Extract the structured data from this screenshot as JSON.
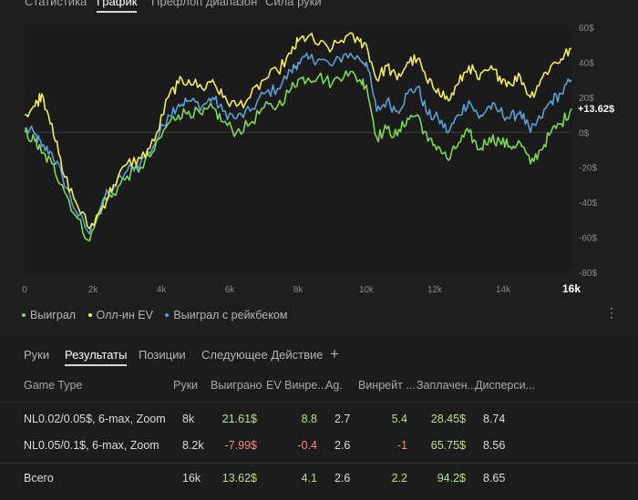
{
  "top_tabs": [
    "Статистика",
    "График",
    "Префлоп диапазон",
    "Сила руки"
  ],
  "active_top_tab": 1,
  "chart_data": {
    "type": "line",
    "x_axis": {
      "ticks": [
        "0",
        "2k",
        "4k",
        "6k",
        "8k",
        "10k",
        "12k",
        "14k"
      ],
      "max_label": "16k",
      "range": [
        0,
        16000
      ]
    },
    "y_axis": {
      "ticks": [
        "60$",
        "40$",
        "20$",
        "0$",
        "-20$",
        "-40$",
        "-60$",
        "-80$"
      ],
      "range": [
        -80,
        60
      ]
    },
    "current_value_label": "+13.62$",
    "legend": [
      "Выиграл",
      "Олл-ин EV",
      "Выиграл с рейкбеком"
    ],
    "series": [
      {
        "name": "Выиграл",
        "color": "#7ed957",
        "x": [
          0,
          300,
          500,
          800,
          1100,
          1500,
          1900,
          2300,
          2600,
          3000,
          3400,
          3800,
          4200,
          4500,
          4800,
          5200,
          5500,
          5800,
          6200,
          6600,
          7000,
          7400,
          7800,
          8000,
          8300,
          8600,
          9000,
          9400,
          9800,
          10000,
          10300,
          10600,
          10900,
          11200,
          11500,
          11800,
          12100,
          12400,
          12700,
          13000,
          13300,
          13600,
          13900,
          14200,
          14500,
          14800,
          15100,
          15400,
          15700,
          16000
        ],
        "y": [
          0,
          -5,
          -12,
          -18,
          -30,
          -48,
          -62,
          -40,
          -35,
          -25,
          -20,
          -10,
          5,
          10,
          12,
          10,
          14,
          6,
          0,
          5,
          14,
          15,
          25,
          30,
          31,
          32,
          28,
          35,
          30,
          27,
          -3,
          2,
          -2,
          8,
          10,
          -5,
          -8,
          -16,
          -6,
          0,
          -10,
          -3,
          -5,
          -8,
          -6,
          -18,
          -10,
          0,
          5,
          13.62
        ]
      },
      {
        "name": "Олл-ин EV",
        "color": "#f2ec60",
        "x": [
          0,
          300,
          500,
          800,
          1100,
          1500,
          1900,
          2300,
          2600,
          3000,
          3400,
          3800,
          4200,
          4500,
          4800,
          5200,
          5500,
          5800,
          6200,
          6600,
          7000,
          7400,
          7800,
          8000,
          8300,
          8600,
          9000,
          9400,
          9800,
          10000,
          10300,
          10600,
          10900,
          11200,
          11500,
          11800,
          12100,
          12400,
          12700,
          13000,
          13300,
          13600,
          13900,
          14200,
          14500,
          14800,
          15100,
          15400,
          15700,
          16000
        ],
        "y": [
          10,
          15,
          22,
          5,
          -22,
          -40,
          -55,
          -42,
          -30,
          -18,
          -15,
          -5,
          20,
          28,
          30,
          25,
          30,
          20,
          15,
          20,
          30,
          35,
          45,
          52,
          55,
          50,
          48,
          55,
          52,
          50,
          30,
          38,
          30,
          40,
          42,
          28,
          25,
          18,
          28,
          38,
          30,
          36,
          32,
          28,
          32,
          20,
          30,
          38,
          42,
          48
        ]
      },
      {
        "name": "Выиграл с рейкбеком",
        "color": "#5a9fd6",
        "x": [
          0,
          300,
          500,
          800,
          1100,
          1500,
          1900,
          2300,
          2600,
          3000,
          3400,
          3800,
          4200,
          4500,
          4800,
          5200,
          5500,
          5800,
          6200,
          6600,
          7000,
          7400,
          7800,
          8000,
          8300,
          8600,
          9000,
          9400,
          9800,
          10000,
          10300,
          10600,
          10900,
          11200,
          11500,
          11800,
          12100,
          12400,
          12700,
          13000,
          13300,
          13600,
          13900,
          14200,
          14500,
          14800,
          15100,
          15400,
          15700,
          16000
        ],
        "y": [
          2,
          -1,
          -8,
          -12,
          -25,
          -45,
          -58,
          -38,
          -32,
          -22,
          -17,
          -7,
          10,
          16,
          18,
          15,
          20,
          12,
          8,
          12,
          22,
          25,
          35,
          40,
          42,
          42,
          38,
          45,
          42,
          40,
          12,
          18,
          12,
          22,
          26,
          10,
          8,
          0,
          10,
          18,
          8,
          15,
          12,
          8,
          12,
          0,
          8,
          18,
          22,
          30
        ]
      }
    ]
  },
  "bottom_tabs": [
    "Руки",
    "Результаты",
    "Позиции",
    "Следующее Действие",
    "+"
  ],
  "active_bottom_tab": 1,
  "table": {
    "headers": [
      "Game Type",
      "Руки",
      "Выиграно",
      "EV Винре...",
      "Ag.",
      "Винрейт ...",
      "Заплачен...",
      "Дисперси..."
    ],
    "rows": [
      [
        "NL0.02/0.05$, 6-max, Zoom",
        "8k",
        "21.61$",
        "8.8",
        "2.7",
        "5.4",
        "28.45$",
        "8.74"
      ],
      [
        "NL0.05/0.1$, 6-max, Zoom",
        "8.2k",
        "-7.99$",
        "-0.4",
        "2.6",
        "-1",
        "65.75$",
        "8.56"
      ]
    ],
    "total": [
      "Всего",
      "16k",
      "13.62$",
      "4.1",
      "2.6",
      "2.2",
      "94.2$",
      "8.65"
    ]
  }
}
